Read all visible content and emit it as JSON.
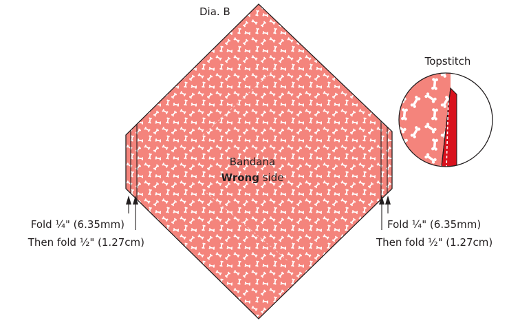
{
  "diagram": {
    "title": "Dia. B",
    "bandana": {
      "name": "Bandana",
      "side_bold": "Wrong",
      "side_rest": " side"
    },
    "fold_left": {
      "line1": "Fold ¼\" (6.35mm)",
      "line2": "Then fold ½\" (1.27cm)"
    },
    "fold_right": {
      "line1": "Fold ¼\" (6.35mm)",
      "line2": "Then fold ½\" (1.27cm)"
    },
    "detail_label": "Topstitch",
    "colors": {
      "fabric": "#f4847c",
      "bone": "#ffffff",
      "outline": "#231f20",
      "hem": "#d8121d"
    },
    "icons": [
      "bone-print-pattern",
      "arrow-up-icon"
    ]
  }
}
